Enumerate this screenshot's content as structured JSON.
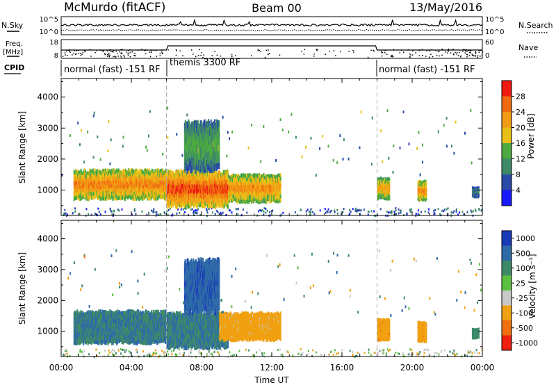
{
  "header": {
    "station": "McMurdo (fitACF)",
    "beam": "Beam 00",
    "date": "13/May/2016"
  },
  "panels": {
    "nsky_label": "N.Sky",
    "nsky_ticks": [
      "10^5",
      "10^0"
    ],
    "nsearch_label": "N.Search",
    "nsearch_ticks": [
      "10^5",
      "10^0"
    ],
    "freq_label_1": "Freq.",
    "freq_label_2": "[MHz]",
    "freq_ticks": [
      "18",
      "8"
    ],
    "nave_label": "Nave",
    "nave_ticks": [
      "60",
      "0"
    ],
    "cpid_label": "CPID",
    "cpid_segments": [
      {
        "label": "normal (fast) -151 RF",
        "start_hour": 0,
        "end_hour": 6
      },
      {
        "label": "themis 3300 RF",
        "start_hour": 6,
        "end_hour": 18
      },
      {
        "label": "normal (fast) -151 RF",
        "start_hour": 18,
        "end_hour": 24
      }
    ]
  },
  "axes": {
    "xlabel": "Time UT",
    "ylabel": "Slant Range [km]",
    "x_ticks": [
      "00:00",
      "04:00",
      "08:00",
      "12:00",
      "16:00",
      "20:00",
      "00:00"
    ],
    "y_ticks": [
      "1000",
      "2000",
      "3000",
      "4000"
    ]
  },
  "colorbars": {
    "power": {
      "label": "Power [dB]",
      "ticks": [
        "4",
        "8",
        "12",
        "16",
        "20",
        "24",
        "28"
      ],
      "colors": [
        "#1a1aff",
        "#2a4aa8",
        "#3e8a68",
        "#4caa40",
        "#e8c018",
        "#f39a14",
        "#f06a10",
        "#ee1a10"
      ]
    },
    "velocity": {
      "label": "Velocity [m s⁻¹]",
      "ticks": [
        "1000",
        "500",
        "100",
        "25",
        "-25",
        "-100",
        "-500",
        "-1000"
      ],
      "colors": [
        "#1a3ab8",
        "#2f6aa8",
        "#3e8a68",
        "#5cc040",
        "#c8c8c8",
        "#f0a010",
        "#f07010",
        "#ee2010"
      ]
    }
  },
  "chart_data": [
    {
      "type": "heatmap",
      "title": "Power",
      "xlabel": "Time UT",
      "ylabel": "Slant Range [km]",
      "xlim": [
        0,
        24
      ],
      "ylim": [
        180,
        4600
      ],
      "colorbar_label": "Power [dB]",
      "colorbar_range": [
        0,
        32
      ],
      "regions": [
        {
          "x": [
            0.7,
            6.0
          ],
          "y": [
            700,
            1650
          ],
          "value": 25
        },
        {
          "x": [
            6.0,
            9.5
          ],
          "y": [
            450,
            1600
          ],
          "value": 29
        },
        {
          "x": [
            9.5,
            12.5
          ],
          "y": [
            600,
            1500
          ],
          "value": 24
        },
        {
          "x": [
            7.0,
            9.0
          ],
          "y": [
            1600,
            3200
          ],
          "value": 14
        },
        {
          "x": [
            18.0,
            18.7
          ],
          "y": [
            700,
            1400
          ],
          "value": 22
        },
        {
          "x": [
            20.3,
            20.8
          ],
          "y": [
            650,
            1300
          ],
          "value": 24
        },
        {
          "x": [
            23.4,
            23.8
          ],
          "y": [
            750,
            1100
          ],
          "value": 10
        }
      ]
    },
    {
      "type": "heatmap",
      "title": "Velocity",
      "xlabel": "Time UT",
      "ylabel": "Slant Range [km]",
      "xlim": [
        0,
        24
      ],
      "ylim": [
        180,
        4600
      ],
      "colorbar_label": "Velocity [m s⁻¹]",
      "colorbar_range": [
        -1000,
        1000
      ],
      "regions": [
        {
          "x": [
            0.7,
            6.0
          ],
          "y": [
            600,
            1650
          ],
          "value": 300
        },
        {
          "x": [
            6.0,
            9.5
          ],
          "y": [
            450,
            1600
          ],
          "value": 300
        },
        {
          "x": [
            9.0,
            12.5
          ],
          "y": [
            700,
            1600
          ],
          "value": -150
        },
        {
          "x": [
            7.0,
            9.0
          ],
          "y": [
            1600,
            3300
          ],
          "value": 600
        },
        {
          "x": [
            18.0,
            18.7
          ],
          "y": [
            700,
            1400
          ],
          "value": -200
        },
        {
          "x": [
            20.3,
            20.8
          ],
          "y": [
            650,
            1300
          ],
          "value": -200
        },
        {
          "x": [
            23.4,
            23.8
          ],
          "y": [
            750,
            1100
          ],
          "value": 200
        }
      ]
    }
  ]
}
